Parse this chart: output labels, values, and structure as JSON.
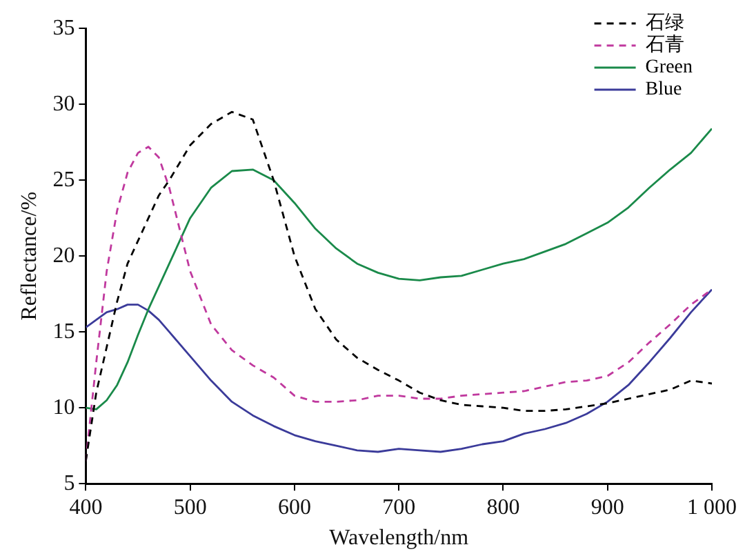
{
  "chart_data": {
    "type": "line",
    "xlabel": "Wavelength/nm",
    "ylabel": "Reflectance/%",
    "x": [
      400,
      410,
      420,
      430,
      440,
      450,
      460,
      470,
      480,
      500,
      520,
      540,
      560,
      580,
      600,
      620,
      640,
      660,
      680,
      700,
      720,
      740,
      760,
      780,
      800,
      820,
      840,
      860,
      880,
      900,
      920,
      940,
      960,
      980,
      1000
    ],
    "series": [
      {
        "name": "石绿",
        "color": "#000000",
        "line_style": "dashed",
        "values": [
          6.5,
          11,
          14,
          17,
          19.5,
          21,
          22.5,
          24,
          25,
          27.3,
          28.7,
          29.5,
          29,
          25,
          20,
          16.5,
          14.5,
          13.3,
          12.5,
          11.8,
          11,
          10.5,
          10.2,
          10.1,
          10,
          9.8,
          9.8,
          9.9,
          10.1,
          10.3,
          10.6,
          10.9,
          11.2,
          11.8,
          11.6
        ]
      },
      {
        "name": "石青",
        "color": "#c0399e",
        "line_style": "dashed",
        "values": [
          6.5,
          13,
          19,
          23,
          25.5,
          26.8,
          27.2,
          26.5,
          24.5,
          19,
          15.5,
          13.8,
          12.8,
          12,
          10.8,
          10.4,
          10.4,
          10.5,
          10.8,
          10.8,
          10.6,
          10.6,
          10.8,
          10.9,
          11,
          11.1,
          11.4,
          11.7,
          11.8,
          12.1,
          13,
          14.3,
          15.5,
          16.8,
          17.8
        ]
      },
      {
        "name": "Green",
        "color": "#1a8a4a",
        "line_style": "solid",
        "values": [
          10,
          9.9,
          10.5,
          11.5,
          13,
          14.8,
          16.5,
          18,
          19.5,
          22.5,
          24.5,
          25.6,
          25.7,
          25,
          23.5,
          21.8,
          20.5,
          19.5,
          18.9,
          18.5,
          18.4,
          18.6,
          18.7,
          19.1,
          19.5,
          19.8,
          20.3,
          20.8,
          21.5,
          22.2,
          23.2,
          24.5,
          25.7,
          26.8,
          28.4
        ]
      },
      {
        "name": "Blue",
        "color": "#3b3b9a",
        "line_style": "solid",
        "values": [
          15.3,
          15.8,
          16.3,
          16.5,
          16.8,
          16.8,
          16.4,
          15.8,
          15,
          13.4,
          11.8,
          10.4,
          9.5,
          8.8,
          8.2,
          7.8,
          7.5,
          7.2,
          7.1,
          7.3,
          7.2,
          7.1,
          7.3,
          7.6,
          7.8,
          8.3,
          8.6,
          9,
          9.6,
          10.4,
          11.5,
          13,
          14.6,
          16.3,
          17.8
        ]
      }
    ],
    "xlim": [
      400,
      1000
    ],
    "xticks": [
      400,
      500,
      600,
      700,
      800,
      900,
      {
        "value": 1000,
        "label": "1 000"
      }
    ],
    "ylim": [
      5,
      35
    ],
    "yticks": [
      5,
      10,
      15,
      20,
      25,
      30,
      35
    ],
    "grid": false,
    "legend": "top right",
    "marker": "none"
  }
}
